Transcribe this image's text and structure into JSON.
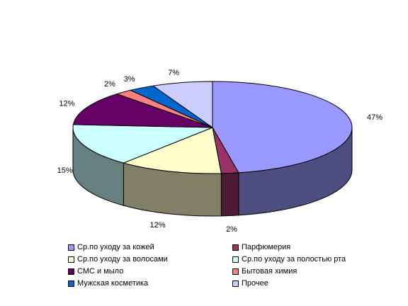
{
  "chart_data": {
    "type": "pie",
    "three_d": true,
    "title": "",
    "series": [
      {
        "name": "Ср.по уходу за кожей",
        "value": 47,
        "label": "47%",
        "color": "#9999FF",
        "side_color": "#4D4D80"
      },
      {
        "name": "Парфюмерия",
        "value": 2,
        "label": "2%",
        "color": "#993366",
        "side_color": "#4D1A33"
      },
      {
        "name": "Ср.по уходу за волосами",
        "value": 12,
        "label": "12%",
        "color": "#FFFFCC",
        "side_color": "#808066"
      },
      {
        "name": "Ср.по  уходу за полостью рта",
        "value": 15,
        "label": "15%",
        "color": "#CCFFFF",
        "side_color": "#668080"
      },
      {
        "name": "СМС и мыло",
        "value": 12,
        "label": "12%",
        "color": "#660066",
        "side_color": "#330033"
      },
      {
        "name": "Бытовая химия",
        "value": 2,
        "label": "2%",
        "color": "#FF8080",
        "side_color": "#804040"
      },
      {
        "name": "Мужская косметика",
        "value": 3,
        "label": "3%",
        "color": "#0066CC",
        "side_color": "#003366"
      },
      {
        "name": "Прочее",
        "value": 7,
        "label": "7%",
        "color": "#CCCCFF",
        "side_color": "#666680"
      }
    ],
    "legend_position": "bottom",
    "legend_columns": 2
  }
}
